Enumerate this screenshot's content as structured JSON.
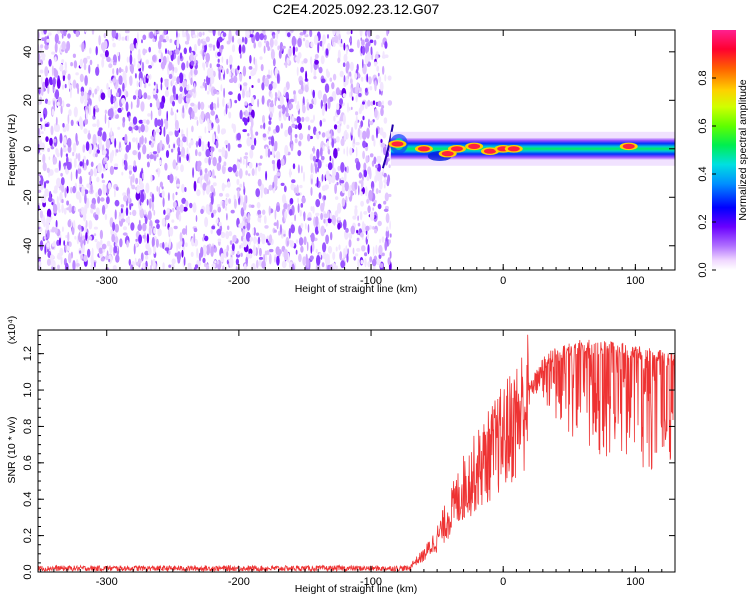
{
  "chart_data": [
    {
      "type": "heatmap",
      "title": "C2E4.2025.092.23.12.G07",
      "xlabel": "Height of straight line (km)",
      "ylabel": "Frequency (Hz)",
      "xlim": [
        -352,
        130
      ],
      "ylim": [
        -50,
        49
      ],
      "xticks": [
        -300,
        -200,
        -100,
        0,
        100
      ],
      "xtick_labels": [
        "-300",
        "-200",
        "-100",
        "0",
        "100"
      ],
      "yticks": [
        -40,
        -20,
        0,
        20,
        40
      ],
      "ytick_labels": [
        "-40",
        "-20",
        "0",
        "20",
        "40"
      ],
      "noise_region_x": [
        -352,
        -85
      ],
      "signal_start_x": -85,
      "signal_frequency_hz": 0,
      "signal_peaks": [
        {
          "x": -80,
          "y": 2
        },
        {
          "x": -60,
          "y": 0
        },
        {
          "x": -42,
          "y": -2
        },
        {
          "x": -35,
          "y": 0
        },
        {
          "x": -22,
          "y": 1
        },
        {
          "x": -10,
          "y": -1
        },
        {
          "x": 0,
          "y": 0
        },
        {
          "x": 8,
          "y": 0
        },
        {
          "x": 95,
          "y": 1
        }
      ],
      "colorbar": {
        "label": "Normalized spectral amplitude",
        "range": [
          0,
          1
        ],
        "ticks": [
          0.0,
          0.2,
          0.4,
          0.6,
          0.8
        ],
        "tick_labels": [
          "0.0",
          "0.2",
          "0.4",
          "0.6",
          "0.8"
        ]
      }
    },
    {
      "type": "line",
      "xlabel": "Height of straight line (km)",
      "ylabel": "SNR (10 * v/v)",
      "yscale_label": "(x10⁴)",
      "xlim": [
        -352,
        130
      ],
      "ylim": [
        0,
        1.33
      ],
      "xticks": [
        -300,
        -200,
        -100,
        0,
        100
      ],
      "xtick_labels": [
        "-300",
        "-200",
        "-100",
        "0",
        "100"
      ],
      "yticks": [
        0.0,
        0.2,
        0.4,
        0.6,
        0.8,
        1.0,
        1.2
      ],
      "ytick_labels": [
        "0.0",
        "0.2",
        "0.4",
        "0.6",
        "0.8",
        "1.0",
        "1.2"
      ],
      "series": [
        {
          "name": "SNR",
          "color": "#ee3333",
          "x": [
            -352,
            -300,
            -200,
            -100,
            -80,
            -70,
            -60,
            -50,
            -40,
            -30,
            -20,
            -10,
            0,
            10,
            20,
            30,
            40,
            60,
            80,
            100,
            120,
            130
          ],
          "values": [
            0.02,
            0.02,
            0.02,
            0.02,
            0.02,
            0.04,
            0.1,
            0.2,
            0.35,
            0.5,
            0.6,
            0.7,
            0.8,
            0.9,
            1.05,
            1.18,
            1.25,
            1.28,
            1.27,
            1.25,
            1.22,
            1.2
          ],
          "min_envelope_x": [
            20,
            40,
            60,
            80,
            100,
            120,
            130
          ],
          "min_envelope_values": [
            1.0,
            0.8,
            0.68,
            0.62,
            0.58,
            0.55,
            0.52
          ]
        }
      ]
    }
  ]
}
